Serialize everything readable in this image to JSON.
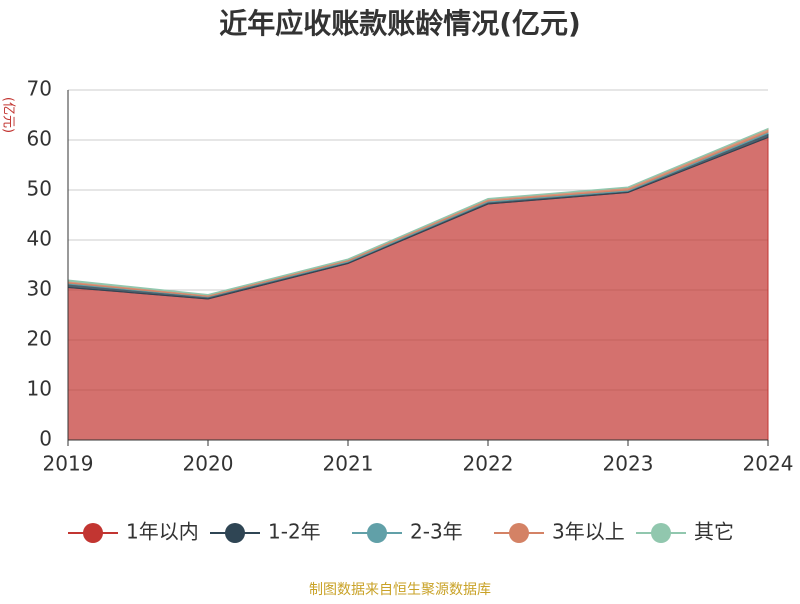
{
  "chart_data": {
    "type": "area",
    "stacked": true,
    "title": "近年应收账款账龄情况(亿元)",
    "y_label": "(亿元)",
    "source": "制图数据来自恒生聚源数据库",
    "categories": [
      "2019",
      "2020",
      "2021",
      "2022",
      "2023",
      "2024"
    ],
    "series": [
      {
        "name": "1年以内",
        "color": "#c23531",
        "values": [
          30.5,
          28.2,
          35.3,
          47.2,
          49.5,
          60.5
        ]
      },
      {
        "name": "1-2年",
        "color": "#2f4554",
        "values": [
          0.7,
          0.4,
          0.3,
          0.4,
          0.3,
          0.8
        ]
      },
      {
        "name": "2-3年",
        "color": "#61a0a8",
        "values": [
          0.2,
          0.1,
          0.2,
          0.2,
          0.2,
          0.3
        ]
      },
      {
        "name": "3年以上",
        "color": "#d48265",
        "values": [
          0.4,
          0.3,
          0.3,
          0.4,
          0.5,
          0.6
        ]
      },
      {
        "name": "其它",
        "color": "#91c7ae",
        "values": [
          0.2,
          0.1,
          0.1,
          0.1,
          0.1,
          0.1
        ]
      }
    ],
    "ylim": [
      0,
      70
    ],
    "yticks": [
      0,
      10,
      20,
      30,
      40,
      50,
      60,
      70
    ],
    "grid": true,
    "legend": "bottom"
  }
}
